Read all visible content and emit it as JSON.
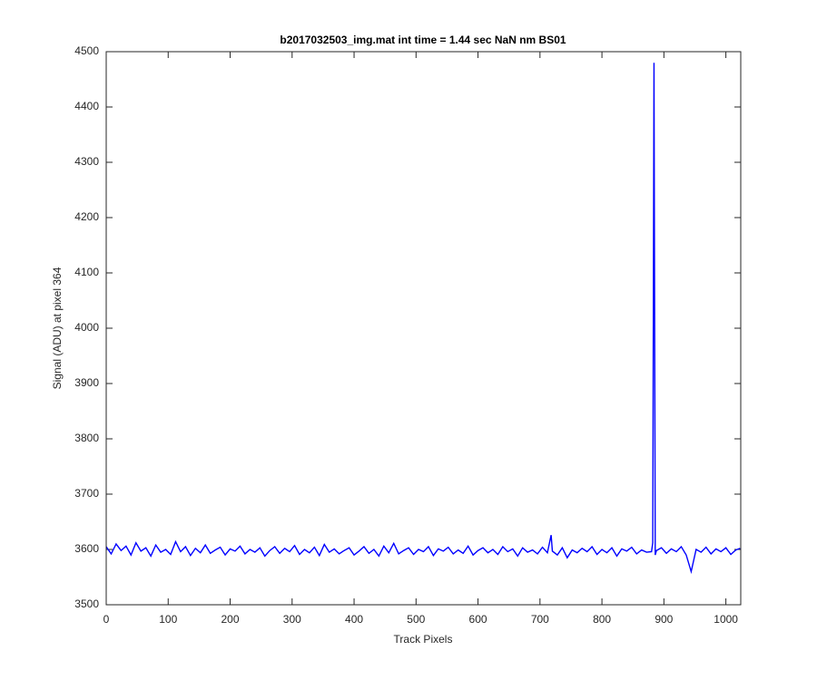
{
  "chart_data": {
    "type": "line",
    "title": "b2017032503_img.mat int time = 1.44 sec  NaN nm BS01",
    "xlabel": "Track Pixels",
    "ylabel": "Signal (ADU) at pixel 364",
    "color": "#0000ff",
    "xlim": [
      0,
      1024
    ],
    "ylim": [
      3500,
      4500
    ],
    "xticks": [
      0,
      100,
      200,
      300,
      400,
      500,
      600,
      700,
      800,
      900,
      1000
    ],
    "yticks": [
      3500,
      3600,
      3700,
      3800,
      3900,
      4000,
      4100,
      4200,
      4300,
      4400,
      4500
    ],
    "x": [
      0,
      8,
      16,
      24,
      32,
      40,
      48,
      56,
      64,
      72,
      80,
      88,
      96,
      104,
      112,
      120,
      128,
      136,
      144,
      152,
      160,
      168,
      176,
      184,
      192,
      200,
      208,
      216,
      224,
      232,
      240,
      248,
      256,
      264,
      272,
      280,
      288,
      296,
      304,
      312,
      320,
      328,
      336,
      344,
      352,
      360,
      368,
      376,
      384,
      392,
      400,
      408,
      416,
      424,
      432,
      440,
      448,
      456,
      464,
      472,
      480,
      488,
      496,
      504,
      512,
      520,
      528,
      536,
      544,
      552,
      560,
      568,
      576,
      584,
      592,
      600,
      608,
      616,
      624,
      632,
      640,
      648,
      656,
      664,
      672,
      680,
      688,
      696,
      704,
      712,
      718,
      720,
      728,
      736,
      744,
      752,
      760,
      768,
      776,
      784,
      792,
      800,
      808,
      816,
      824,
      832,
      840,
      848,
      856,
      864,
      872,
      880,
      882,
      884,
      886,
      888,
      896,
      904,
      912,
      920,
      928,
      936,
      944,
      952,
      960,
      968,
      976,
      984,
      992,
      1000,
      1008,
      1016,
      1023
    ],
    "values": [
      3605,
      3592,
      3610,
      3598,
      3606,
      3590,
      3612,
      3597,
      3603,
      3588,
      3608,
      3595,
      3600,
      3591,
      3614,
      3596,
      3605,
      3589,
      3602,
      3594,
      3608,
      3593,
      3599,
      3604,
      3590,
      3601,
      3597,
      3606,
      3592,
      3600,
      3595,
      3603,
      3588,
      3598,
      3605,
      3593,
      3602,
      3596,
      3607,
      3591,
      3600,
      3594,
      3604,
      3589,
      3609,
      3595,
      3601,
      3592,
      3598,
      3603,
      3590,
      3597,
      3605,
      3593,
      3600,
      3588,
      3606,
      3594,
      3611,
      3592,
      3598,
      3603,
      3591,
      3600,
      3596,
      3605,
      3589,
      3601,
      3597,
      3604,
      3592,
      3599,
      3593,
      3606,
      3590,
      3598,
      3603,
      3594,
      3600,
      3591,
      3605,
      3596,
      3601,
      3588,
      3603,
      3595,
      3599,
      3592,
      3604,
      3594,
      3626,
      3597,
      3590,
      3603,
      3585,
      3599,
      3594,
      3602,
      3596,
      3605,
      3591,
      3600,
      3594,
      3603,
      3588,
      3601,
      3597,
      3604,
      3592,
      3599,
      3595,
      3596,
      3612,
      4480,
      3590,
      3598,
      3603,
      3593,
      3601,
      3596,
      3605,
      3590,
      3560,
      3600,
      3595,
      3604,
      3592,
      3601,
      3596,
      3603,
      3591,
      3599,
      3602
    ]
  }
}
